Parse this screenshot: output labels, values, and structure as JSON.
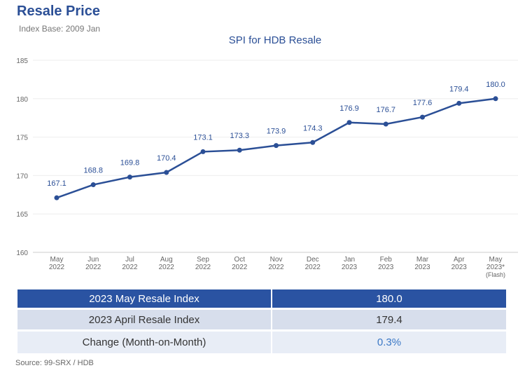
{
  "header": {
    "title": "Resale Price",
    "subtitle": "Index Base: 2009 Jan"
  },
  "chart_data": {
    "type": "line",
    "title": "SPI for HDB Resale",
    "categories": [
      [
        "May",
        "2022"
      ],
      [
        "Jun",
        "2022"
      ],
      [
        "Jul",
        "2022"
      ],
      [
        "Aug",
        "2022"
      ],
      [
        "Sep",
        "2022"
      ],
      [
        "Oct",
        "2022"
      ],
      [
        "Nov",
        "2022"
      ],
      [
        "Dec",
        "2022"
      ],
      [
        "Jan",
        "2023"
      ],
      [
        "Feb",
        "2023"
      ],
      [
        "Mar",
        "2023"
      ],
      [
        "Apr",
        "2023"
      ],
      [
        "May",
        "2023*",
        "(Flash)"
      ]
    ],
    "values": [
      167.1,
      168.8,
      169.8,
      170.4,
      173.1,
      173.3,
      173.9,
      174.3,
      176.9,
      176.7,
      177.6,
      179.4,
      180.0
    ],
    "ylim": [
      160,
      185
    ],
    "yticks": [
      160,
      165,
      170,
      175,
      180,
      185
    ],
    "grid": true,
    "color": "#2b4f96"
  },
  "table": {
    "rows": [
      {
        "label": "2023 May Resale Index",
        "value": "180.0"
      },
      {
        "label": "2023 April Resale Index",
        "value": "179.4"
      },
      {
        "label": "Change (Month-on-Month)",
        "value": "0.3%"
      }
    ]
  },
  "footer": {
    "source": "Source: 99-SRX / HDB"
  }
}
